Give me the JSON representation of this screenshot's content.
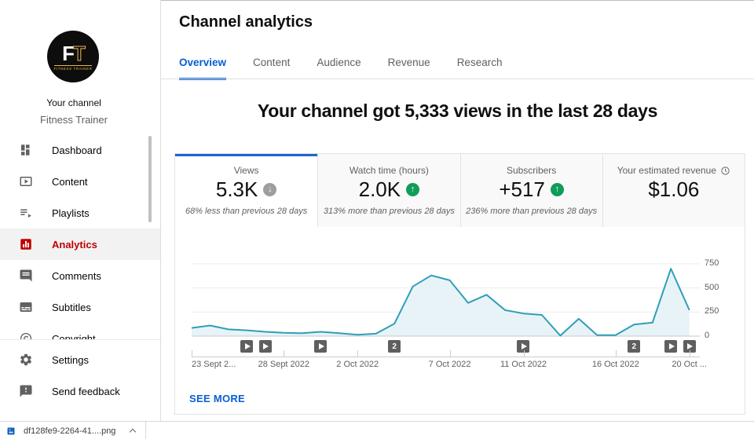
{
  "colors": {
    "accent_blue": "#065fd4",
    "tab_underline_blue": "#1967d2",
    "brand_red": "#c00000",
    "trend_up_green": "#0f9d58",
    "trend_down_gray": "#9e9e9e",
    "chart_line": "#2e9fb7",
    "chart_fill": "#e8f3f8"
  },
  "sidebar": {
    "avatar": {
      "monogram_f": "F",
      "monogram_t": "T",
      "caption": "FITNESS TRAINER"
    },
    "your_channel_label": "Your channel",
    "channel_name": "Fitness Trainer",
    "items": [
      {
        "label": "Dashboard",
        "icon": "dashboard-icon",
        "active": false
      },
      {
        "label": "Content",
        "icon": "content-icon",
        "active": false
      },
      {
        "label": "Playlists",
        "icon": "playlists-icon",
        "active": false
      },
      {
        "label": "Analytics",
        "icon": "analytics-icon",
        "active": true
      },
      {
        "label": "Comments",
        "icon": "comments-icon",
        "active": false
      },
      {
        "label": "Subtitles",
        "icon": "subtitles-icon",
        "active": false
      },
      {
        "label": "Copyright",
        "icon": "copyright-icon",
        "active": false
      }
    ],
    "footer_items": [
      {
        "label": "Settings",
        "icon": "settings-icon",
        "active": false
      },
      {
        "label": "Send feedback",
        "icon": "feedback-icon",
        "active": false
      }
    ]
  },
  "header": {
    "title": "Channel analytics",
    "tabs": [
      {
        "label": "Overview",
        "active": true
      },
      {
        "label": "Content",
        "active": false
      },
      {
        "label": "Audience",
        "active": false
      },
      {
        "label": "Revenue",
        "active": false
      },
      {
        "label": "Research",
        "active": false
      }
    ]
  },
  "main": {
    "headline": "Your channel got 5,333 views in the last 28 days",
    "metric_cards": [
      {
        "label": "Views",
        "value": "5.3K",
        "trend": "down",
        "trend_icon": "arrow-down-circle-icon",
        "subtitle": "68% less than previous 28 days",
        "active": true
      },
      {
        "label": "Watch time (hours)",
        "value": "2.0K",
        "trend": "up",
        "trend_icon": "arrow-up-circle-icon",
        "subtitle": "313% more than previous 28 days",
        "active": false
      },
      {
        "label": "Subscribers",
        "value": "+517",
        "trend": "up",
        "trend_icon": "arrow-up-circle-icon",
        "subtitle": "236% more than previous 28 days",
        "active": false
      },
      {
        "label": "Your estimated revenue",
        "value": "$1.06",
        "trend": "none",
        "info_icon": "clock-icon",
        "subtitle": "",
        "active": false
      }
    ],
    "see_more_label": "SEE MORE"
  },
  "chart_data": {
    "type": "area",
    "x": [
      "23 Sept",
      "24 Sept",
      "25 Sept",
      "26 Sept",
      "27 Sept",
      "28 Sept",
      "29 Sept",
      "30 Sept",
      "1 Oct",
      "2 Oct",
      "3 Oct",
      "4 Oct",
      "5 Oct",
      "6 Oct",
      "7 Oct",
      "8 Oct",
      "9 Oct",
      "10 Oct",
      "11 Oct",
      "12 Oct",
      "13 Oct",
      "14 Oct",
      "15 Oct",
      "16 Oct",
      "17 Oct",
      "18 Oct",
      "19 Oct",
      "20 Oct"
    ],
    "values": [
      85,
      110,
      70,
      60,
      45,
      35,
      30,
      45,
      30,
      15,
      25,
      130,
      515,
      630,
      580,
      345,
      430,
      270,
      235,
      220,
      5,
      180,
      10,
      10,
      120,
      140,
      700,
      270
    ],
    "ylim": [
      0,
      750
    ],
    "yticks": [
      0,
      250,
      500,
      750
    ],
    "y_axis_side": "right",
    "grid": true,
    "x_tick_labels": [
      "23 Sept 2...",
      "28 Sept 2022",
      "2 Oct 2022",
      "7 Oct 2022",
      "11 Oct 2022",
      "16 Oct 2022",
      "20 Oct ..."
    ],
    "x_tick_indices": [
      0,
      5,
      9,
      14,
      18,
      23,
      27
    ],
    "markers": [
      {
        "index": 3,
        "count": 1
      },
      {
        "index": 4,
        "count": 1
      },
      {
        "index": 7,
        "count": 1
      },
      {
        "index": 11,
        "count": 2
      },
      {
        "index": 18,
        "count": 1
      },
      {
        "index": 24,
        "count": 2
      },
      {
        "index": 26,
        "count": 1
      },
      {
        "index": 27,
        "count": 1
      }
    ],
    "line_color": "#2e9fb7",
    "fill_color": "#e8f3f8"
  },
  "download_bar": {
    "filename": "df128fe9-2264-41....png",
    "icon": "image-file-icon"
  }
}
